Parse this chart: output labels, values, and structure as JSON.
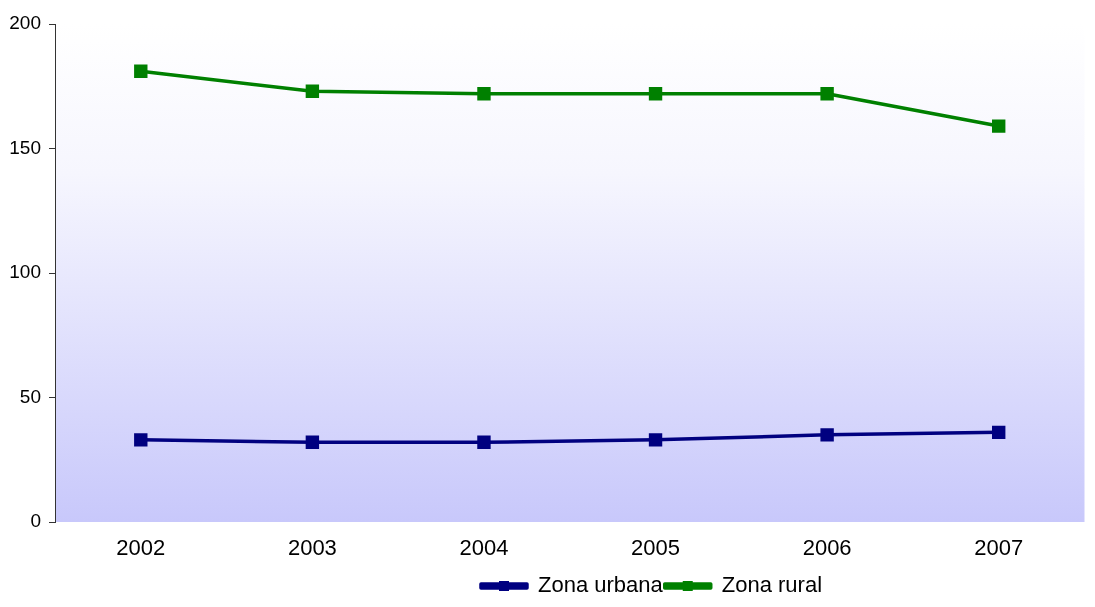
{
  "chart_data": {
    "type": "line",
    "categories": [
      "2002",
      "2003",
      "2004",
      "2005",
      "2006",
      "2007"
    ],
    "series": [
      {
        "name": "Zona urbana",
        "color": "#000080",
        "values": [
          33,
          32,
          32,
          33,
          35,
          36
        ]
      },
      {
        "name": "Zona rural",
        "color": "#008000",
        "values": [
          181,
          173,
          172,
          172,
          172,
          159
        ]
      }
    ],
    "ylim": [
      0,
      200
    ],
    "yticks": [
      0,
      50,
      100,
      150,
      200
    ],
    "grid": false,
    "legend": "bottom",
    "marker": "square"
  }
}
